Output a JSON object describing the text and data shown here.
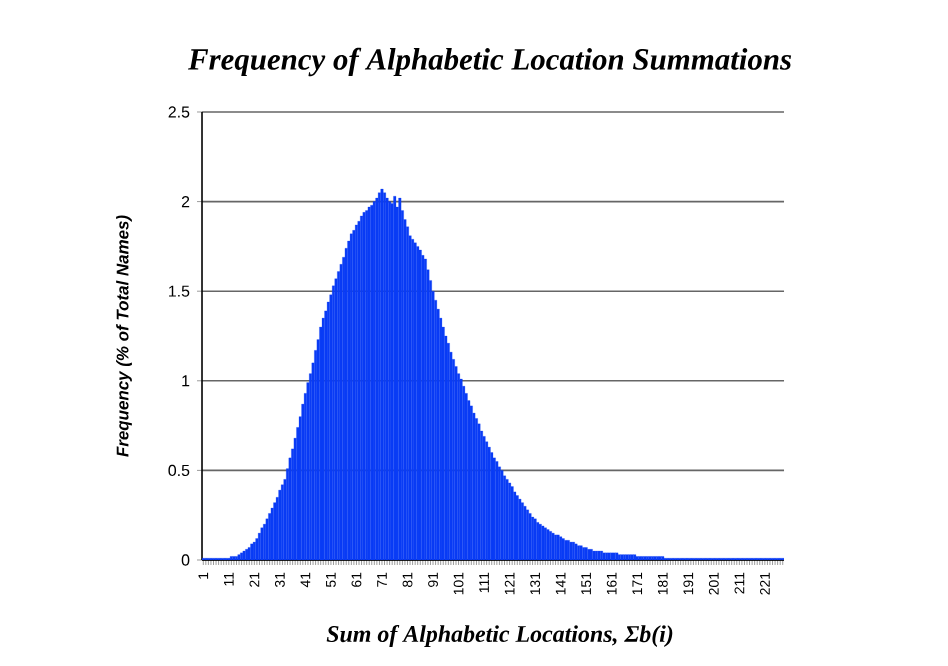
{
  "chart_data": {
    "type": "bar",
    "title": "Frequency of Alphabetic Location Summations",
    "xlabel": "Sum of Alphabetic Locations, Σb(i)",
    "ylabel": "Frequency (% of Total Names)",
    "categories": [
      "1",
      null,
      null,
      null,
      null,
      null,
      null,
      null,
      null,
      null,
      "11",
      null,
      null,
      null,
      null,
      null,
      null,
      null,
      null,
      null,
      "21",
      null,
      null,
      null,
      null,
      null,
      null,
      null,
      null,
      null,
      "31",
      null,
      null,
      null,
      null,
      null,
      null,
      null,
      null,
      null,
      "41",
      null,
      null,
      null,
      null,
      null,
      null,
      null,
      null,
      null,
      "51",
      null,
      null,
      null,
      null,
      null,
      null,
      null,
      null,
      null,
      "61",
      null,
      null,
      null,
      null,
      null,
      null,
      null,
      null,
      null,
      "71",
      null,
      null,
      null,
      null,
      null,
      null,
      null,
      null,
      null,
      "81",
      null,
      null,
      null,
      null,
      null,
      null,
      null,
      null,
      null,
      "91",
      null,
      null,
      null,
      null,
      null,
      null,
      null,
      null,
      null,
      "101",
      null,
      null,
      null,
      null,
      null,
      null,
      null,
      null,
      null,
      "111",
      null,
      null,
      null,
      null,
      null,
      null,
      null,
      null,
      null,
      "121",
      null,
      null,
      null,
      null,
      null,
      null,
      null,
      null,
      null,
      "131",
      null,
      null,
      null,
      null,
      null,
      null,
      null,
      null,
      null,
      "141",
      null,
      null,
      null,
      null,
      null,
      null,
      null,
      null,
      null,
      "151",
      null,
      null,
      null,
      null,
      null,
      null,
      null,
      null,
      null,
      "161",
      null,
      null,
      null,
      null,
      null,
      null,
      null,
      null,
      null,
      "171",
      null,
      null,
      null,
      null,
      null,
      null,
      null,
      null,
      null,
      "181",
      null,
      null,
      null,
      null,
      null,
      null,
      null,
      null,
      null,
      "191",
      null,
      null,
      null,
      null,
      null,
      null,
      null,
      null,
      null,
      "201",
      null,
      null,
      null,
      null,
      null,
      null,
      null,
      null,
      null,
      "211",
      null,
      null,
      null,
      null,
      null,
      null,
      null,
      null,
      null,
      "221",
      null,
      null,
      null,
      null,
      null,
      null,
      null
    ],
    "values": [
      0.01,
      0.01,
      0.01,
      0.01,
      0.01,
      0.01,
      0.01,
      0.01,
      0.01,
      0.01,
      0.01,
      0.02,
      0.02,
      0.02,
      0.03,
      0.04,
      0.05,
      0.06,
      0.07,
      0.09,
      0.1,
      0.12,
      0.15,
      0.18,
      0.2,
      0.23,
      0.26,
      0.29,
      0.32,
      0.35,
      0.39,
      0.42,
      0.45,
      0.51,
      0.57,
      0.62,
      0.68,
      0.74,
      0.8,
      0.87,
      0.93,
      0.99,
      1.04,
      1.1,
      1.17,
      1.23,
      1.3,
      1.35,
      1.39,
      1.44,
      1.48,
      1.53,
      1.57,
      1.61,
      1.65,
      1.69,
      1.74,
      1.78,
      1.82,
      1.84,
      1.87,
      1.89,
      1.92,
      1.94,
      1.95,
      1.97,
      1.98,
      2.0,
      2.02,
      2.05,
      2.07,
      2.05,
      2.02,
      2.0,
      1.99,
      2.03,
      1.97,
      2.02,
      1.95,
      1.9,
      1.86,
      1.81,
      1.79,
      1.77,
      1.75,
      1.73,
      1.7,
      1.68,
      1.62,
      1.56,
      1.5,
      1.45,
      1.4,
      1.35,
      1.3,
      1.25,
      1.21,
      1.16,
      1.12,
      1.08,
      1.04,
      1.01,
      0.97,
      0.93,
      0.89,
      0.86,
      0.82,
      0.79,
      0.76,
      0.72,
      0.69,
      0.66,
      0.63,
      0.6,
      0.57,
      0.55,
      0.52,
      0.5,
      0.47,
      0.45,
      0.43,
      0.41,
      0.38,
      0.36,
      0.34,
      0.32,
      0.3,
      0.28,
      0.26,
      0.24,
      0.23,
      0.21,
      0.2,
      0.19,
      0.18,
      0.17,
      0.16,
      0.15,
      0.14,
      0.14,
      0.13,
      0.12,
      0.11,
      0.11,
      0.1,
      0.1,
      0.09,
      0.08,
      0.08,
      0.07,
      0.07,
      0.06,
      0.06,
      0.05,
      0.05,
      0.05,
      0.05,
      0.04,
      0.04,
      0.04,
      0.04,
      0.04,
      0.04,
      0.03,
      0.03,
      0.03,
      0.03,
      0.03,
      0.03,
      0.03,
      0.02,
      0.02,
      0.02,
      0.02,
      0.02,
      0.02,
      0.02,
      0.02,
      0.02,
      0.02,
      0.02,
      0.01,
      0.01,
      0.01,
      0.01,
      0.01,
      0.01,
      0.01,
      0.01,
      0.01,
      0.01,
      0.01,
      0.01,
      0.01,
      0.01,
      0.01,
      0.01,
      0.01,
      0.01,
      0.01,
      0.01,
      0.01,
      0.01,
      0.01,
      0.01,
      0.01,
      0.01,
      0.01,
      0.01,
      0.01,
      0.01,
      0.01,
      0.01,
      0.01,
      0.01,
      0.01,
      0.01,
      0.01,
      0.01,
      0.01,
      0.01,
      0.01,
      0.01,
      0.01,
      0.01,
      0.01,
      0.01,
      0.01
    ],
    "color": "#0a3cf5",
    "ylim": [
      0,
      2.5
    ],
    "yticks": [
      0,
      0.5,
      1,
      1.5,
      2,
      2.5
    ],
    "grid": "y"
  }
}
